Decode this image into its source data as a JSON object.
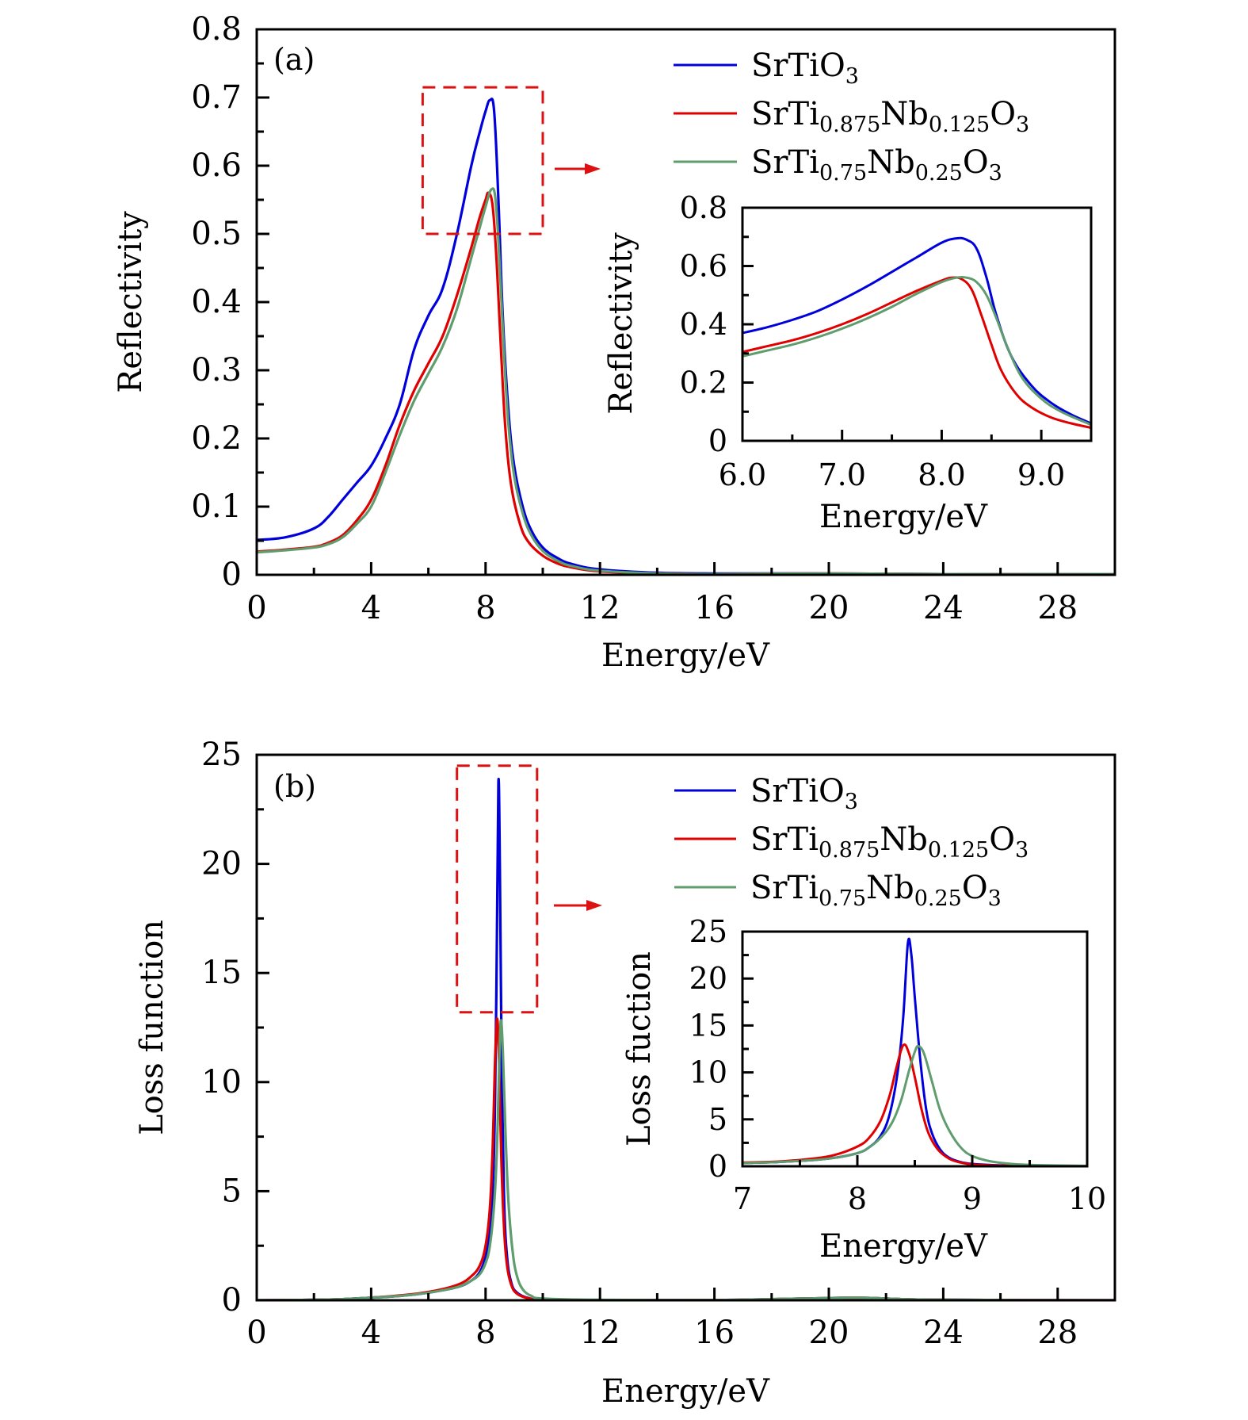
{
  "chart_data": [
    {
      "id": "a",
      "type": "line",
      "panel_label": "(a)",
      "xlabel": "Energy/eV",
      "ylabel": "Reflectivity",
      "xlim": [
        0,
        30
      ],
      "ylim": [
        0,
        0.8
      ],
      "xticks": [
        0,
        4,
        8,
        12,
        16,
        20,
        24,
        28
      ],
      "xtick_labels": [
        "0",
        "4",
        "8",
        "12",
        "16",
        "20",
        "24",
        "28"
      ],
      "yticks": [
        0,
        0.1,
        0.2,
        0.3,
        0.4,
        0.5,
        0.6,
        0.7,
        0.8
      ],
      "ytick_labels": [
        "0",
        "0.1",
        "0.2",
        "0.3",
        "0.4",
        "0.5",
        "0.6",
        "0.7",
        "0.8"
      ],
      "grid": false,
      "legend_position": "top-right",
      "series": [
        {
          "name": "SrTiO3",
          "color": "#0000dd",
          "x": [
            0,
            1,
            2,
            2.5,
            3,
            3.5,
            4,
            4.5,
            5,
            5.5,
            6,
            6.5,
            7,
            7.5,
            7.8,
            8.0,
            8.15,
            8.3,
            8.45,
            8.6,
            8.8,
            9.0,
            9.3,
            9.6,
            10,
            10.5,
            11,
            12,
            14,
            16,
            20,
            24,
            30
          ],
          "y": [
            0.051,
            0.055,
            0.068,
            0.085,
            0.11,
            0.135,
            0.16,
            0.2,
            0.25,
            0.33,
            0.38,
            0.42,
            0.5,
            0.6,
            0.65,
            0.68,
            0.696,
            0.68,
            0.55,
            0.38,
            0.24,
            0.16,
            0.1,
            0.065,
            0.04,
            0.025,
            0.016,
            0.008,
            0.003,
            0.002,
            0.002,
            0.001,
            0.001
          ]
        },
        {
          "name": "SrTi0.875Nb0.125O3",
          "color": "#e00000",
          "x": [
            0,
            1,
            2,
            2.5,
            3,
            3.5,
            4,
            4.5,
            5,
            5.5,
            6,
            6.5,
            7,
            7.5,
            7.8,
            8.0,
            8.1,
            8.25,
            8.4,
            8.55,
            8.7,
            8.9,
            9.2,
            9.5,
            10,
            10.5,
            11,
            12,
            14,
            16,
            20,
            24,
            30
          ],
          "y": [
            0.034,
            0.037,
            0.041,
            0.047,
            0.058,
            0.08,
            0.11,
            0.16,
            0.22,
            0.27,
            0.31,
            0.35,
            0.41,
            0.48,
            0.525,
            0.55,
            0.56,
            0.54,
            0.45,
            0.32,
            0.21,
            0.13,
            0.075,
            0.048,
            0.028,
            0.017,
            0.011,
            0.005,
            0.002,
            0.001,
            0.002,
            0.001,
            0.001
          ]
        },
        {
          "name": "SrTi0.75Nb0.25O3",
          "color": "#5f9c6e",
          "x": [
            0,
            1,
            2,
            2.5,
            3,
            3.5,
            4,
            4.5,
            5,
            5.5,
            6,
            6.5,
            7,
            7.5,
            7.8,
            8.0,
            8.2,
            8.35,
            8.5,
            8.65,
            8.8,
            9.0,
            9.3,
            9.6,
            10,
            10.5,
            11,
            12,
            14,
            16,
            20,
            24,
            30
          ],
          "y": [
            0.033,
            0.036,
            0.04,
            0.045,
            0.055,
            0.075,
            0.1,
            0.15,
            0.205,
            0.255,
            0.295,
            0.335,
            0.39,
            0.465,
            0.51,
            0.54,
            0.565,
            0.55,
            0.45,
            0.32,
            0.22,
            0.145,
            0.09,
            0.058,
            0.035,
            0.021,
            0.013,
            0.006,
            0.002,
            0.001,
            0.002,
            0.001,
            0.001
          ]
        }
      ],
      "highlight_box": {
        "x_range": [
          5.8,
          10.0
        ],
        "y_range": [
          0.5,
          0.715
        ],
        "color": "#dd1111",
        "style": "dashed"
      },
      "inset": {
        "xlabel": "Energy/eV",
        "ylabel": "Reflectivity",
        "xlim": [
          6.0,
          9.5
        ],
        "ylim": [
          0,
          0.8
        ],
        "xticks": [
          6.0,
          7.0,
          8.0,
          9.0
        ],
        "xtick_labels": [
          "6.0",
          "7.0",
          "8.0",
          "9.0"
        ],
        "yticks": [
          0,
          0.2,
          0.4,
          0.6,
          0.8
        ],
        "ytick_labels": [
          "0",
          "0.2",
          "0.4",
          "0.6",
          "0.8"
        ],
        "series": [
          {
            "name": "SrTiO3",
            "color": "#0000dd",
            "x": [
              6.0,
              6.25,
              6.5,
              6.75,
              7.0,
              7.25,
              7.5,
              7.75,
              8.0,
              8.15,
              8.25,
              8.35,
              8.45,
              8.55,
              8.7,
              8.9,
              9.1,
              9.3,
              9.5
            ],
            "y": [
              0.37,
              0.39,
              0.415,
              0.445,
              0.485,
              0.53,
              0.58,
              0.63,
              0.68,
              0.695,
              0.69,
              0.66,
              0.56,
              0.43,
              0.29,
              0.19,
              0.13,
              0.09,
              0.06
            ]
          },
          {
            "name": "SrTi0.875Nb0.125O3",
            "color": "#e00000",
            "x": [
              6.0,
              6.25,
              6.5,
              6.75,
              7.0,
              7.25,
              7.5,
              7.75,
              8.0,
              8.1,
              8.2,
              8.3,
              8.4,
              8.5,
              8.6,
              8.75,
              8.9,
              9.1,
              9.3,
              9.5
            ],
            "y": [
              0.305,
              0.325,
              0.345,
              0.37,
              0.4,
              0.435,
              0.475,
              0.515,
              0.55,
              0.56,
              0.555,
              0.52,
              0.43,
              0.33,
              0.24,
              0.16,
              0.115,
              0.08,
              0.06,
              0.045
            ]
          },
          {
            "name": "SrTi0.75Nb0.25O3",
            "color": "#5f9c6e",
            "x": [
              6.0,
              6.25,
              6.5,
              6.75,
              7.0,
              7.25,
              7.5,
              7.75,
              8.0,
              8.15,
              8.25,
              8.35,
              8.45,
              8.55,
              8.65,
              8.8,
              9.0,
              9.2,
              9.5
            ],
            "y": [
              0.29,
              0.31,
              0.33,
              0.355,
              0.385,
              0.42,
              0.46,
              0.505,
              0.545,
              0.56,
              0.56,
              0.545,
              0.5,
              0.42,
              0.33,
              0.22,
              0.145,
              0.1,
              0.055
            ]
          }
        ]
      }
    },
    {
      "id": "b",
      "type": "line",
      "panel_label": "(b)",
      "xlabel": "Energy/eV",
      "ylabel": "Loss function",
      "xlim": [
        0,
        30
      ],
      "ylim": [
        0,
        25
      ],
      "xticks": [
        0,
        4,
        8,
        12,
        16,
        20,
        24,
        28
      ],
      "xtick_labels": [
        "0",
        "4",
        "8",
        "12",
        "16",
        "20",
        "24",
        "28"
      ],
      "yticks": [
        0,
        5,
        10,
        15,
        20,
        25
      ],
      "ytick_labels": [
        "0",
        "5",
        "10",
        "15",
        "20",
        "25"
      ],
      "grid": false,
      "legend_position": "top-right",
      "series": [
        {
          "name": "SrTiO3",
          "color": "#0000dd",
          "x": [
            0,
            2,
            3,
            4,
            5,
            6,
            7,
            7.5,
            7.8,
            8.0,
            8.15,
            8.25,
            8.33,
            8.4,
            8.45,
            8.5,
            8.57,
            8.65,
            8.75,
            8.9,
            9.1,
            9.5,
            10,
            12,
            16,
            18,
            20,
            21,
            22,
            24,
            30
          ],
          "y": [
            0,
            0.02,
            0.05,
            0.12,
            0.2,
            0.35,
            0.6,
            0.9,
            1.3,
            2.0,
            3.2,
            5.0,
            9.0,
            17.0,
            23.8,
            20.0,
            10.0,
            4.5,
            2.0,
            0.8,
            0.35,
            0.1,
            0.04,
            0.01,
            0.01,
            0.05,
            0.1,
            0.12,
            0.08,
            0.02,
            0
          ]
        },
        {
          "name": "SrTi0.875Nb0.125O3",
          "color": "#e00000",
          "x": [
            0,
            2,
            3,
            4,
            5,
            6,
            7,
            7.5,
            7.8,
            8.0,
            8.15,
            8.25,
            8.32,
            8.4,
            8.47,
            8.55,
            8.65,
            8.75,
            8.9,
            9.1,
            9.5,
            10,
            12,
            16,
            18,
            20,
            21,
            22,
            24,
            30
          ],
          "y": [
            0,
            0.02,
            0.05,
            0.12,
            0.22,
            0.38,
            0.7,
            1.1,
            1.6,
            2.5,
            4.2,
            7.0,
            10.5,
            12.9,
            11.0,
            6.5,
            3.2,
            1.6,
            0.7,
            0.3,
            0.09,
            0.04,
            0.01,
            0.01,
            0.05,
            0.1,
            0.12,
            0.08,
            0.02,
            0
          ]
        },
        {
          "name": "SrTi0.75Nb0.25O3",
          "color": "#5f9c6e",
          "x": [
            0,
            2,
            3,
            4,
            5,
            6,
            7,
            7.5,
            7.8,
            8.0,
            8.15,
            8.3,
            8.4,
            8.47,
            8.53,
            8.6,
            8.7,
            8.8,
            8.95,
            9.1,
            9.3,
            9.6,
            10,
            12,
            16,
            18,
            20,
            21,
            22,
            24,
            30
          ],
          "y": [
            0,
            0.02,
            0.05,
            0.12,
            0.2,
            0.35,
            0.6,
            0.9,
            1.2,
            1.7,
            2.5,
            4.4,
            7.0,
            10.5,
            12.8,
            11.5,
            7.5,
            4.5,
            2.2,
            1.1,
            0.5,
            0.2,
            0.08,
            0.02,
            0.01,
            0.05,
            0.1,
            0.12,
            0.08,
            0.02,
            0
          ]
        }
      ],
      "highlight_box": {
        "x_range": [
          7.0,
          9.8
        ],
        "y_range": [
          13.2,
          24.5
        ],
        "color": "#dd1111",
        "style": "dashed"
      },
      "inset": {
        "xlabel": "Energy/eV",
        "ylabel": "Loss fuction",
        "xlim": [
          7,
          10
        ],
        "ylim": [
          0,
          25
        ],
        "xticks": [
          7,
          8,
          9,
          10
        ],
        "xtick_labels": [
          "7",
          "8",
          "9",
          "10"
        ],
        "yticks": [
          0,
          5,
          10,
          15,
          20,
          25
        ],
        "ytick_labels": [
          "0",
          "5",
          "10",
          "15",
          "20",
          "25"
        ],
        "series": [
          {
            "name": "SrTiO3",
            "color": "#0000dd",
            "x": [
              7.0,
              7.3,
              7.6,
              7.8,
              8.0,
              8.1,
              8.2,
              8.28,
              8.35,
              8.4,
              8.44,
              8.47,
              8.5,
              8.55,
              8.6,
              8.65,
              8.72,
              8.8,
              8.9,
              9.0,
              9.2,
              9.5,
              10.0
            ],
            "y": [
              0.35,
              0.45,
              0.65,
              0.9,
              1.4,
              2.0,
              3.2,
              5.5,
              10.0,
              16.0,
              23.8,
              22.5,
              18.0,
              11.0,
              6.0,
              3.5,
              1.8,
              0.9,
              0.45,
              0.25,
              0.12,
              0.05,
              0.02
            ]
          },
          {
            "name": "SrTi0.875Nb0.125O3",
            "color": "#e00000",
            "x": [
              7.0,
              7.3,
              7.6,
              7.8,
              8.0,
              8.1,
              8.2,
              8.28,
              8.34,
              8.4,
              8.45,
              8.5,
              8.56,
              8.62,
              8.7,
              8.8,
              8.9,
              9.0,
              9.2,
              9.5,
              10.0
            ],
            "y": [
              0.4,
              0.5,
              0.8,
              1.2,
              2.1,
              3.0,
              4.8,
              7.5,
              10.5,
              12.9,
              12.0,
              9.5,
              6.0,
              3.5,
              1.8,
              0.8,
              0.4,
              0.2,
              0.08,
              0.03,
              0.01
            ]
          },
          {
            "name": "SrTi0.75Nb0.25O3",
            "color": "#5f9c6e",
            "x": [
              7.0,
              7.3,
              7.6,
              7.8,
              8.0,
              8.1,
              8.2,
              8.3,
              8.38,
              8.45,
              8.5,
              8.53,
              8.58,
              8.65,
              8.72,
              8.8,
              8.9,
              9.0,
              9.15,
              9.3,
              9.5,
              10.0
            ],
            "y": [
              0.35,
              0.45,
              0.65,
              0.9,
              1.4,
              2.0,
              3.0,
              4.6,
              7.0,
              10.2,
              12.2,
              12.8,
              12.0,
              9.0,
              6.0,
              3.8,
              2.0,
              1.1,
              0.55,
              0.3,
              0.15,
              0.05
            ]
          }
        ]
      }
    }
  ],
  "legend": [
    {
      "base": "SrTi",
      "parts": [
        [
          "SrTiO",
          ""
        ],
        [
          "3",
          "sub"
        ]
      ],
      "color": "#0000dd"
    },
    {
      "base": "SrTi",
      "parts": [
        [
          "SrTi",
          ""
        ],
        [
          "0.875",
          "sub"
        ],
        [
          "Nb",
          ""
        ],
        [
          "0.125",
          "sub"
        ],
        [
          "O",
          ""
        ],
        [
          "3",
          "sub"
        ]
      ],
      "color": "#e00000"
    },
    {
      "base": "SrTi",
      "parts": [
        [
          "SrTi",
          ""
        ],
        [
          "0.75",
          "sub"
        ],
        [
          "Nb",
          ""
        ],
        [
          "0.25",
          "sub"
        ],
        [
          "O",
          ""
        ],
        [
          "3",
          "sub"
        ]
      ],
      "color": "#5f9c6e"
    }
  ]
}
